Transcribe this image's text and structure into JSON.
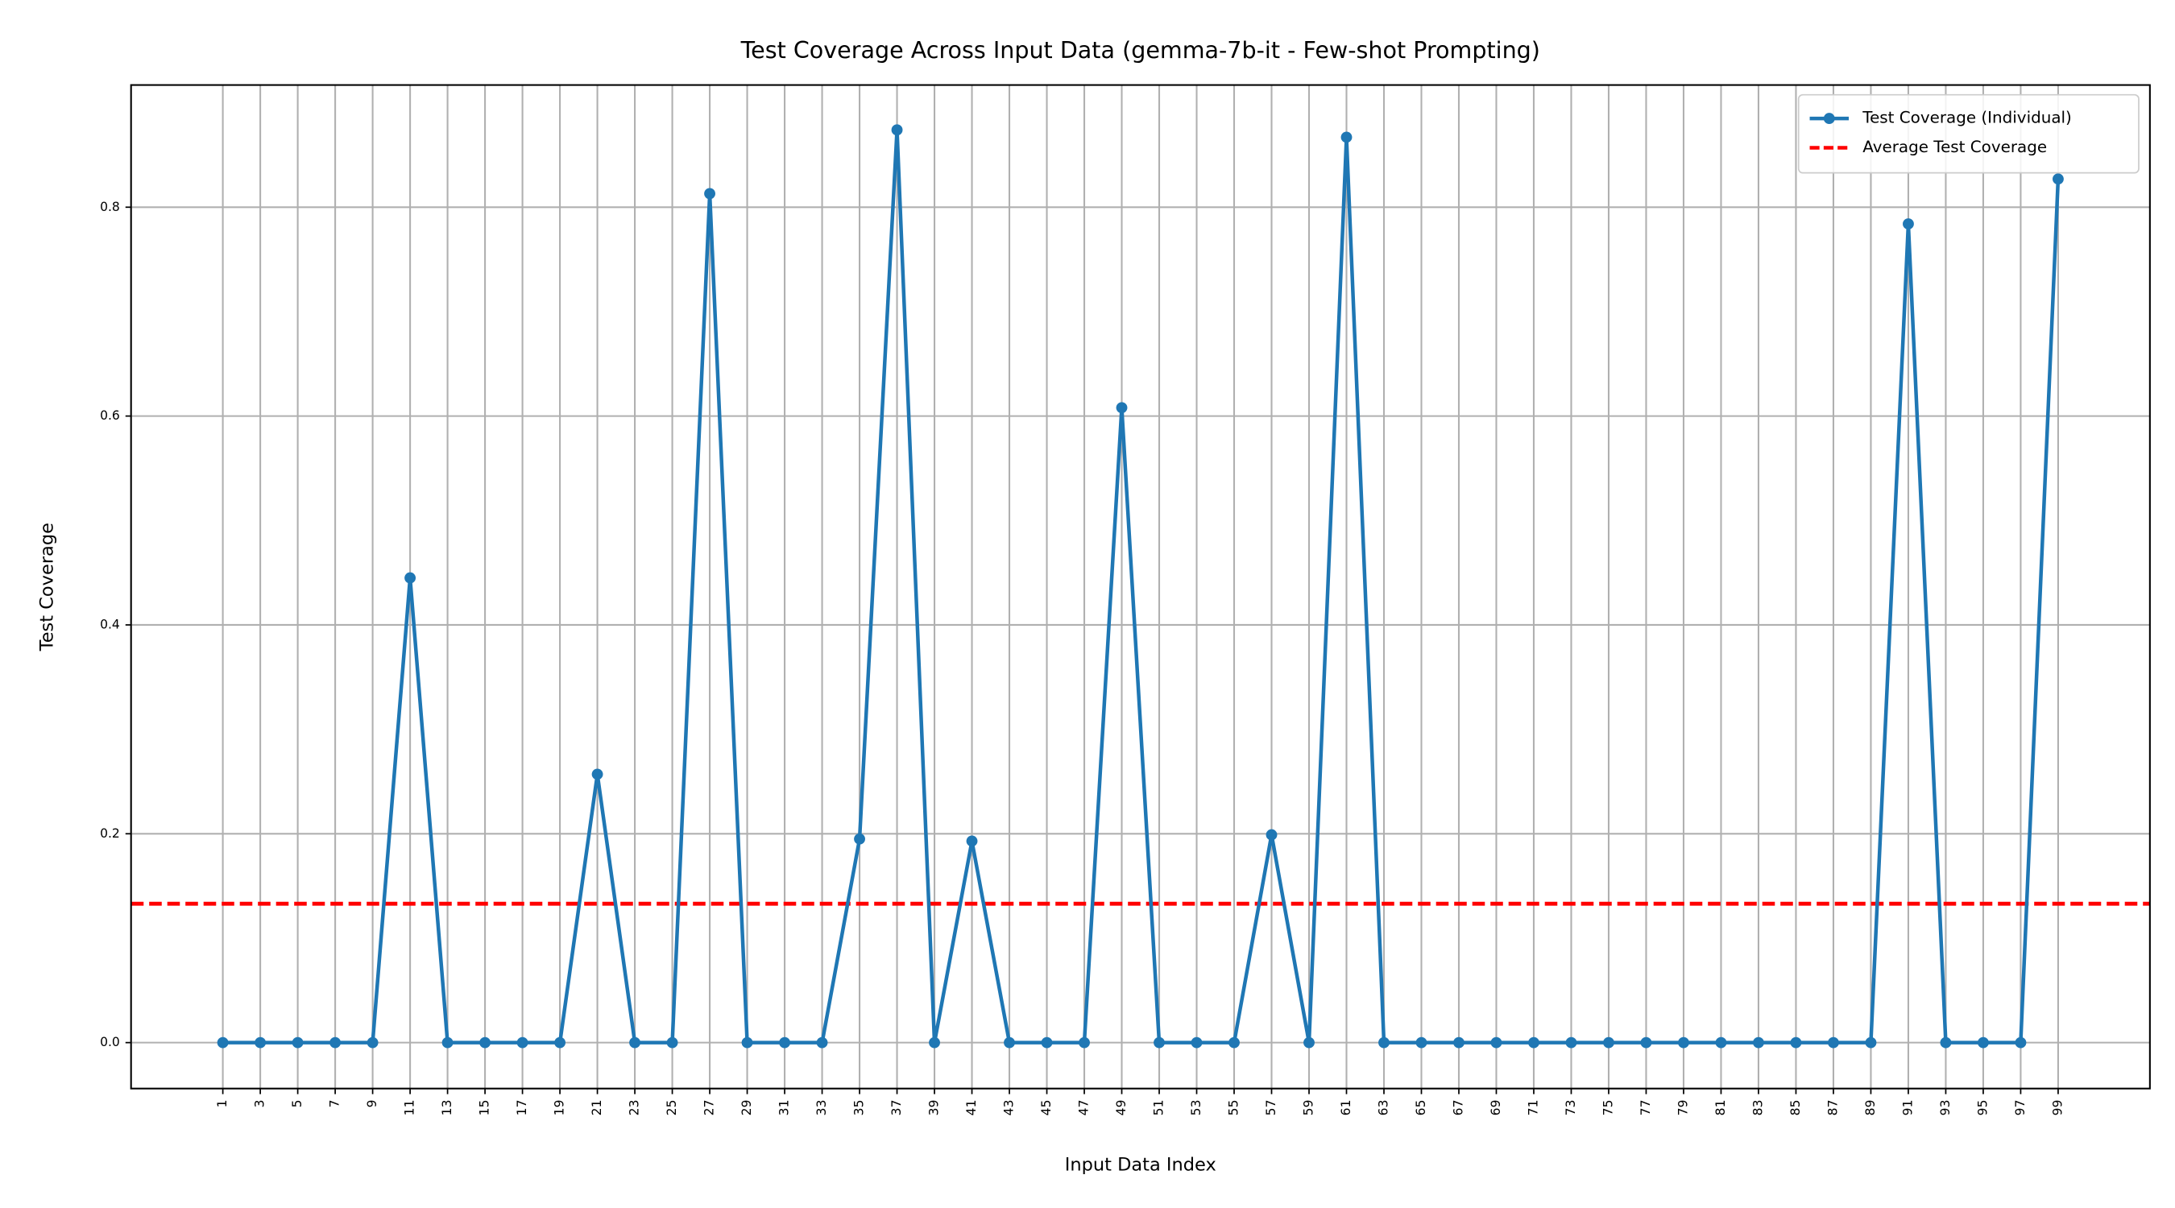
{
  "chart_data": {
    "type": "line",
    "title": "Test Coverage Across Input Data (gemma-7b-it - Few-shot Prompting)",
    "x_label": "Input Data Index",
    "y_label": "Test Coverage",
    "x": [
      1,
      3,
      5,
      7,
      9,
      11,
      13,
      15,
      17,
      19,
      21,
      23,
      25,
      27,
      29,
      31,
      33,
      35,
      37,
      39,
      41,
      43,
      45,
      47,
      49,
      51,
      53,
      55,
      57,
      59,
      61,
      63,
      65,
      67,
      69,
      71,
      73,
      75,
      77,
      79,
      81,
      83,
      85,
      87,
      89,
      91,
      93,
      95,
      97,
      99
    ],
    "series": [
      {
        "name": "Test Coverage (Individual)",
        "color": "#1f77b4",
        "values": [
          0,
          0,
          0,
          0,
          0,
          0.445,
          0,
          0,
          0,
          0,
          0.257,
          0,
          0,
          0.813,
          0,
          0,
          0,
          0.195,
          0.874,
          0,
          0.193,
          0,
          0,
          0,
          0.608,
          0,
          0,
          0,
          0.199,
          0,
          0.867,
          0,
          0,
          0,
          0,
          0,
          0,
          0,
          0,
          0,
          0,
          0,
          0,
          0,
          0,
          0.784,
          0,
          0,
          0,
          0.827
        ]
      }
    ],
    "hlines": [
      {
        "name": "Average Test Coverage",
        "color": "#ff0000",
        "value": 0.133,
        "style": "dashed"
      }
    ],
    "xlim": [
      -3.9,
      103.9
    ],
    "ylim": [
      -0.044,
      0.917
    ],
    "xticks": [
      1,
      3,
      5,
      7,
      9,
      11,
      13,
      15,
      17,
      19,
      21,
      23,
      25,
      27,
      29,
      31,
      33,
      35,
      37,
      39,
      41,
      43,
      45,
      47,
      49,
      51,
      53,
      55,
      57,
      59,
      61,
      63,
      65,
      67,
      69,
      71,
      73,
      75,
      77,
      79,
      81,
      83,
      85,
      87,
      89,
      91,
      93,
      95,
      97,
      99
    ],
    "yticks": [
      {
        "value": 0,
        "label": "0.0"
      },
      0.2,
      0.4,
      0.6,
      0.8
    ],
    "grid": true,
    "legend": "upper right"
  }
}
